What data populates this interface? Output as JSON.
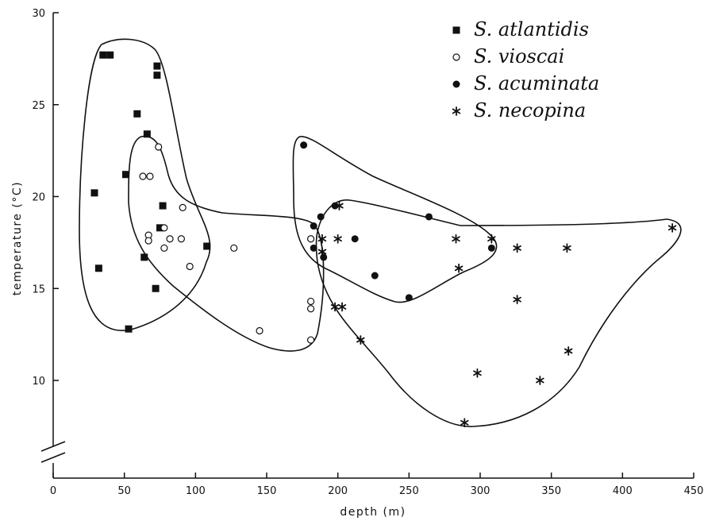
{
  "chart_data": {
    "type": "scatter",
    "title": "",
    "xlabel": "depth (m)",
    "ylabel": "temperature (°C)",
    "xlim": [
      0,
      450
    ],
    "ylim": [
      5,
      30
    ],
    "y_axis_break": true,
    "grid": false,
    "legend_position": "top-right",
    "x_ticks": [
      0,
      50,
      100,
      150,
      200,
      250,
      300,
      350,
      400,
      450
    ],
    "y_ticks": [
      10,
      15,
      20,
      25,
      30
    ],
    "series": [
      {
        "name": "S. atlantidis",
        "marker": "filled-square",
        "points": [
          [
            35,
            27.7
          ],
          [
            40,
            27.7
          ],
          [
            73,
            27.1
          ],
          [
            73,
            26.6
          ],
          [
            59,
            24.5
          ],
          [
            66,
            23.4
          ],
          [
            29,
            20.2
          ],
          [
            51,
            21.2
          ],
          [
            77,
            19.5
          ],
          [
            75,
            18.3
          ],
          [
            64,
            16.7
          ],
          [
            108,
            17.3
          ],
          [
            32,
            16.1
          ],
          [
            72,
            15.0
          ],
          [
            53,
            12.8
          ]
        ]
      },
      {
        "name": "S. vioscai",
        "marker": "open-circle",
        "points": [
          [
            74,
            22.7
          ],
          [
            63,
            21.1
          ],
          [
            68,
            21.1
          ],
          [
            91,
            19.4
          ],
          [
            67,
            17.9
          ],
          [
            67,
            17.6
          ],
          [
            78,
            18.3
          ],
          [
            82,
            17.7
          ],
          [
            90,
            17.7
          ],
          [
            78,
            17.2
          ],
          [
            96,
            16.2
          ],
          [
            127,
            17.2
          ],
          [
            145,
            12.7
          ],
          [
            181,
            14.3
          ],
          [
            181,
            13.9
          ],
          [
            181,
            12.2
          ],
          [
            181,
            17.7
          ]
        ]
      },
      {
        "name": "S. acuminata",
        "marker": "filled-circle",
        "points": [
          [
            176,
            22.8
          ],
          [
            183,
            18.4
          ],
          [
            188,
            18.9
          ],
          [
            198,
            19.5
          ],
          [
            183,
            17.2
          ],
          [
            190,
            16.7
          ],
          [
            212,
            17.7
          ],
          [
            226,
            15.7
          ],
          [
            250,
            14.5
          ],
          [
            264,
            18.9
          ],
          [
            308,
            17.2
          ]
        ]
      },
      {
        "name": "S. necopina",
        "marker": "asterisk",
        "points": [
          [
            201,
            19.5
          ],
          [
            189,
            17.7
          ],
          [
            200,
            17.7
          ],
          [
            189,
            17.0
          ],
          [
            198,
            14.0
          ],
          [
            203,
            14.0
          ],
          [
            216,
            12.2
          ],
          [
            283,
            17.7
          ],
          [
            308,
            17.7
          ],
          [
            285,
            16.1
          ],
          [
            326,
            17.2
          ],
          [
            361,
            17.2
          ],
          [
            326,
            14.4
          ],
          [
            298,
            10.4
          ],
          [
            342,
            10.0
          ],
          [
            362,
            11.6
          ],
          [
            289,
            7.7
          ],
          [
            435,
            18.3
          ]
        ]
      }
    ]
  }
}
